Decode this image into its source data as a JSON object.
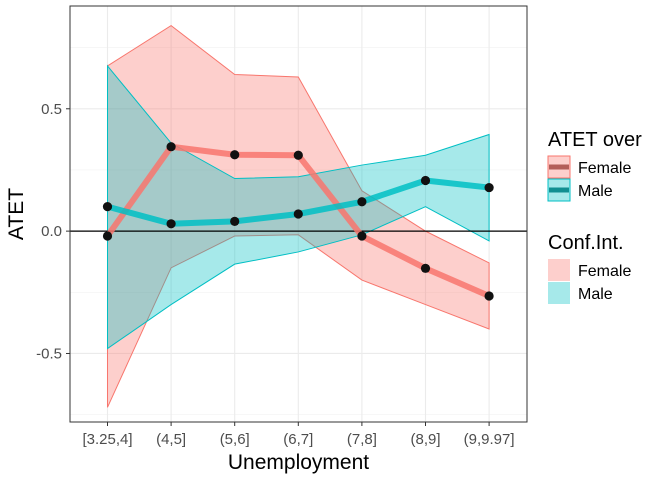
{
  "chart_data": {
    "type": "line",
    "title": "",
    "xlabel": "Unemployment",
    "ylabel": "ATET",
    "categories": [
      "[3.25,4]",
      "(4,5]",
      "(5,6]",
      "(6,7]",
      "(7,8]",
      "(8,9]",
      "(9,9.97]"
    ],
    "ylim": [
      -0.78,
      0.92
    ],
    "yticks": [
      -0.5,
      0.0,
      0.5
    ],
    "ytick_labels": [
      "-0.5",
      "0.0",
      "0.5"
    ],
    "reference_line": 0,
    "grid": true,
    "legend_position": "right",
    "series": [
      {
        "name": "Female",
        "color": "#F8766D",
        "values": [
          -0.02,
          0.345,
          0.312,
          0.31,
          -0.02,
          -0.152,
          -0.265
        ],
        "ci_lower": [
          -0.72,
          -0.15,
          -0.02,
          -0.015,
          -0.2,
          -0.3,
          -0.4
        ],
        "ci_upper": [
          0.675,
          0.84,
          0.64,
          0.63,
          0.165,
          0.0,
          -0.13
        ]
      },
      {
        "name": "Male",
        "color": "#00BFC4",
        "values": [
          0.1,
          0.03,
          0.04,
          0.07,
          0.12,
          0.207,
          0.178
        ],
        "ci_lower": [
          -0.48,
          -0.3,
          -0.135,
          -0.085,
          -0.015,
          0.1,
          -0.04
        ],
        "ci_upper": [
          0.675,
          0.36,
          0.215,
          0.222,
          0.27,
          0.31,
          0.395
        ]
      }
    ],
    "legend": {
      "line_title": "ATET over",
      "fill_title": "Conf.Int.",
      "entries": [
        "Female",
        "Male"
      ]
    }
  }
}
